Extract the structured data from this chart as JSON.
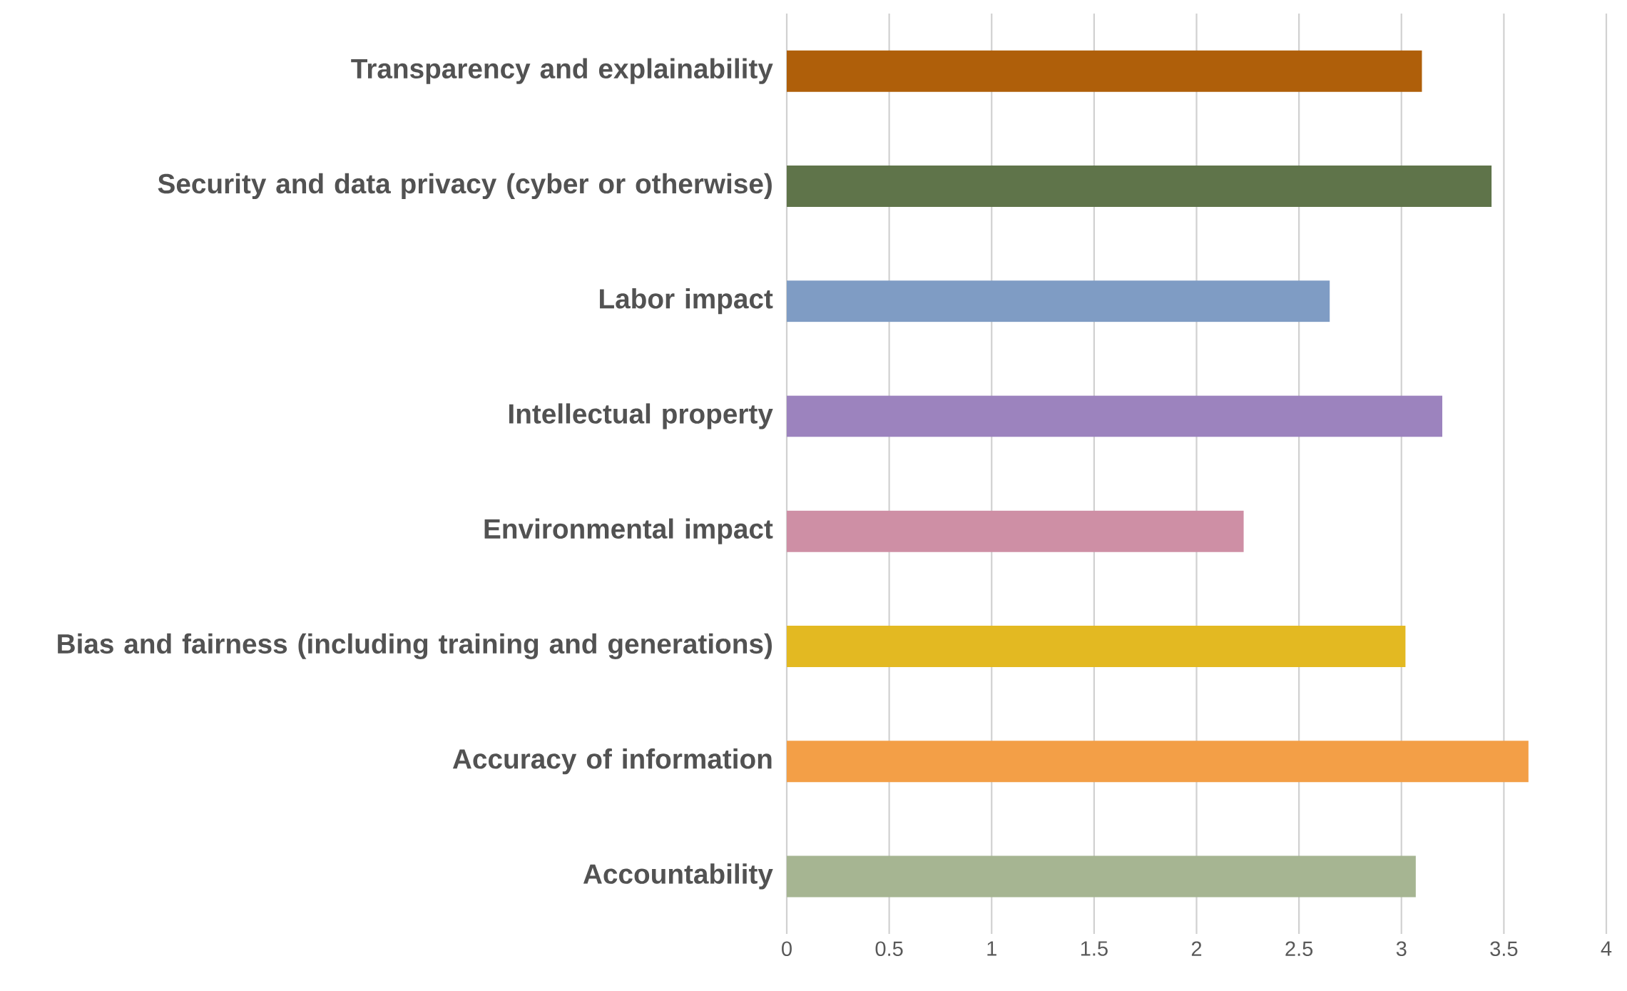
{
  "chart_data": {
    "type": "bar",
    "orientation": "horizontal",
    "categories": [
      "Transparency and explainability",
      "Security and data privacy (cyber or otherwise)",
      "Labor impact",
      "Intellectual property",
      "Environmental impact",
      "Bias and fairness (including training and generations)",
      "Accuracy of information",
      "Accountability"
    ],
    "values": [
      3.1,
      3.44,
      2.65,
      3.2,
      2.23,
      3.02,
      3.62,
      3.07
    ],
    "colors": [
      "#af5f0a",
      "#5f744a",
      "#7f9cc4",
      "#9c83be",
      "#ce8fa5",
      "#e3b922",
      "#f39f47",
      "#a6b592"
    ],
    "xlim": [
      0,
      4
    ],
    "xticks": [
      0,
      0.5,
      1,
      1.5,
      2,
      2.5,
      3,
      3.5,
      4
    ],
    "grid": "x"
  }
}
